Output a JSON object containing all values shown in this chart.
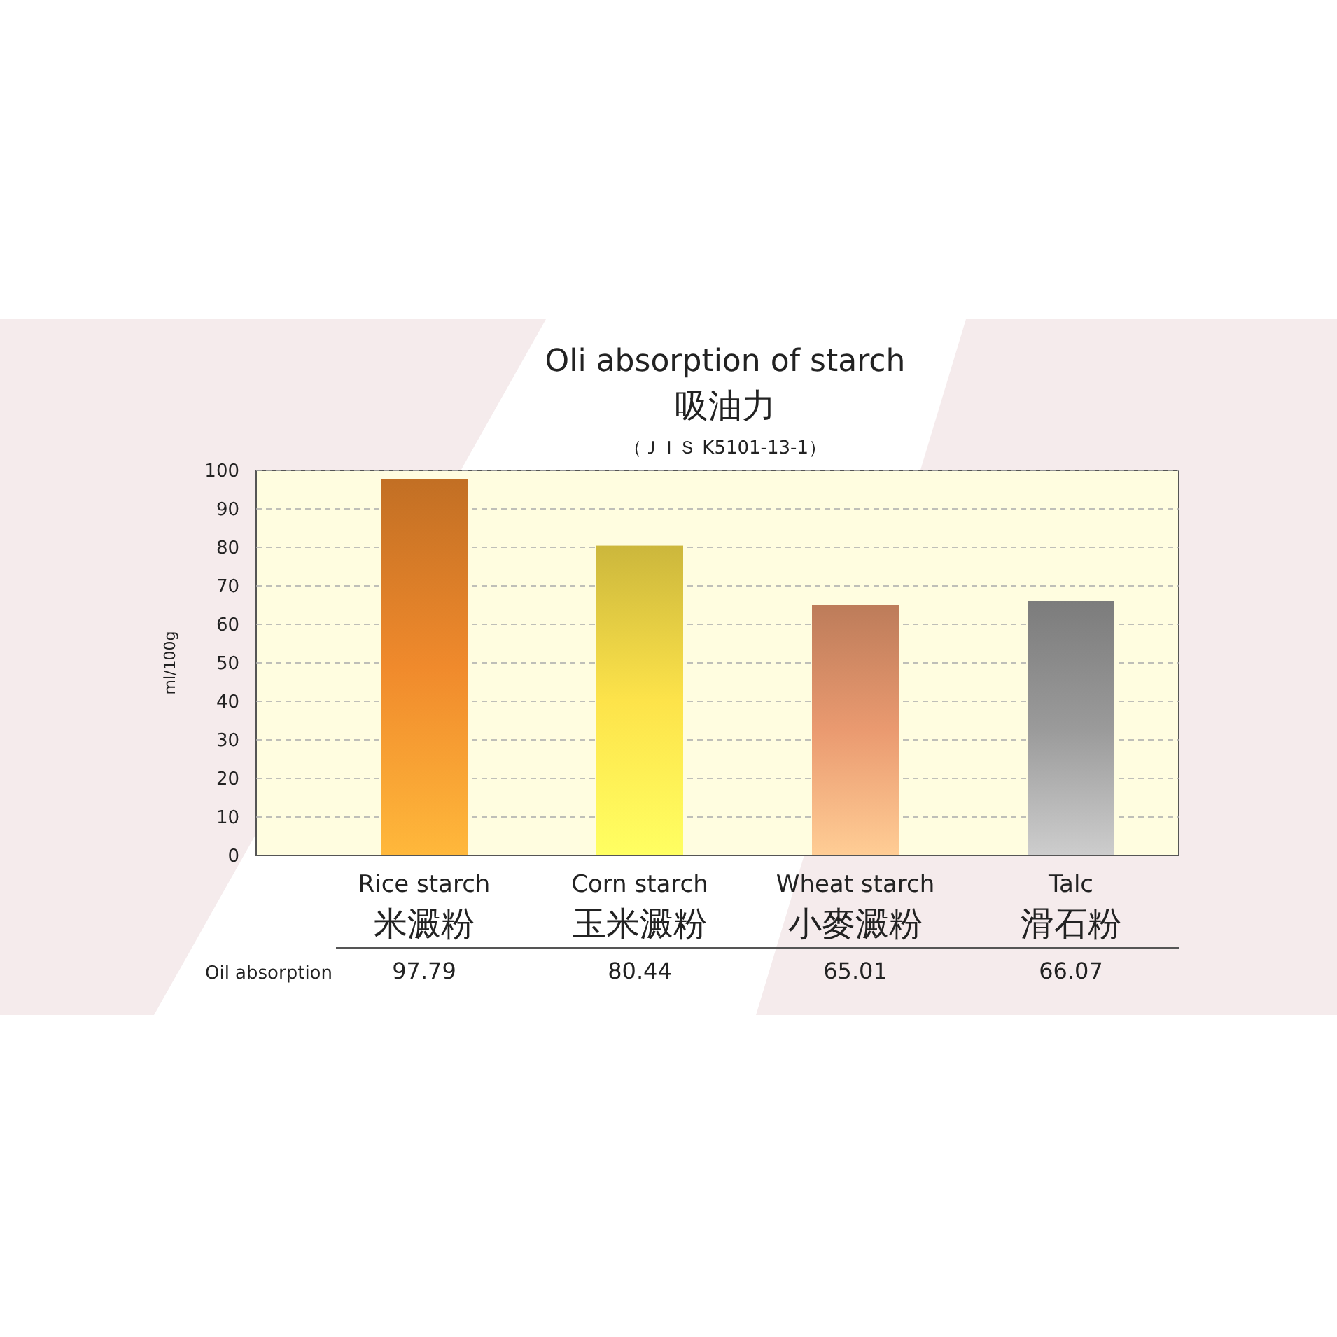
{
  "chart_data": {
    "type": "bar",
    "title": "Oli absorption of starch",
    "subtitle": "吸油力",
    "ylabel": "ml/100g",
    "categories": [
      "Rice starch\n米澱粉",
      "Corn starch\n玉米澱粉",
      "Wheat starch\n小麥澱粉",
      "Talc\n滑石粉"
    ],
    "values": [
      97.79,
      80.44,
      65.01,
      66.07
    ],
    "colors": [
      "#f08a2c",
      "#fde34a",
      "#ea9a70",
      "#9a9a9a"
    ],
    "ylim": [
      0,
      100
    ],
    "yticks": [
      0,
      10,
      20,
      30,
      40,
      50,
      60,
      70,
      80,
      90,
      100
    ],
    "grid": "y",
    "data_labels": true,
    "annotations": [
      "（ＪＩＳ K5101-13-1）",
      "Oil absorption"
    ]
  }
}
